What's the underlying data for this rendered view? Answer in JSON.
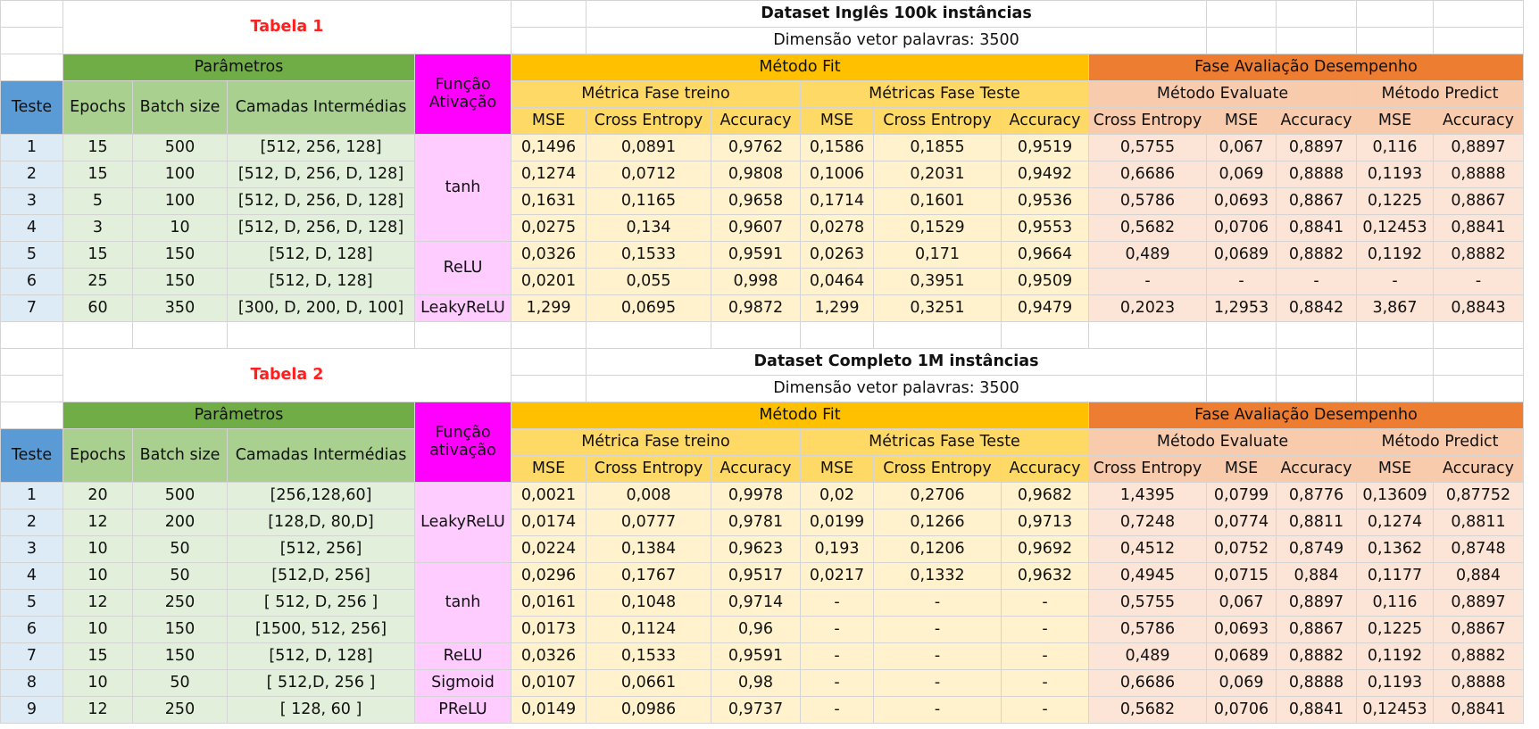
{
  "headers": {
    "teste": "Teste",
    "parametros": "Parâmetros",
    "epochs": "Epochs",
    "batch_size": "Batch size",
    "camadas": "Camadas Intermédias",
    "funcao_line1": "Função",
    "metodo_fit": "Método Fit",
    "metrica_treino": "Métrica Fase treino",
    "metricas_teste": "Métricas Fase Teste",
    "fase_avaliacao": "Fase Avaliação Desempenho",
    "metodo_evaluate": "Método Evaluate",
    "metodo_predict": "Método Predict",
    "mse": "MSE",
    "cross_entropy": "Cross Entropy",
    "accuracy": "Accuracy"
  },
  "tables": [
    {
      "title": "Tabela 1",
      "dataset": "Dataset Inglês 100k instâncias",
      "dimension": "Dimensão vetor palavras: 3500",
      "funcao_line2": "Ativação",
      "rows": [
        [
          "1",
          "15",
          "500",
          "[512, 256, 128]",
          "0,1496",
          "0,0891",
          "0,9762",
          "0,1586",
          "0,1855",
          "0,9519",
          "0,5755",
          "0,067",
          "0,8897",
          "0,116",
          "0,8897"
        ],
        [
          "2",
          "15",
          "100",
          "[512, D, 256, D, 128]",
          "0,1274",
          "0,0712",
          "0,9808",
          "0,1006",
          "0,2031",
          "0,9492",
          "0,6686",
          "0,069",
          "0,8888",
          "0,1193",
          "0,8888"
        ],
        [
          "3",
          "5",
          "100",
          "[512, D, 256, D, 128]",
          "0,1631",
          "0,1165",
          "0,9658",
          "0,1714",
          "0,1601",
          "0,9536",
          "0,5786",
          "0,0693",
          "0,8867",
          "0,1225",
          "0,8867"
        ],
        [
          "4",
          "3",
          "10",
          "[512, D, 256, D, 128]",
          "0,0275",
          "0,134",
          "0,9607",
          "0,0278",
          "0,1529",
          "0,9553",
          "0,5682",
          "0,0706",
          "0,8841",
          "0,12453",
          "0,8841"
        ],
        [
          "5",
          "15",
          "150",
          "[512,  D, 128]",
          "0,0326",
          "0,1533",
          "0,9591",
          "0,0263",
          "0,171",
          "0,9664",
          "0,489",
          "0,0689",
          "0,8882",
          "0,1192",
          "0,8882"
        ],
        [
          "6",
          "25",
          "150",
          "[512,  D, 128]",
          "0,0201",
          "0,055",
          "0,998",
          "0,0464",
          "0,3951",
          "0,9509",
          "-",
          "-",
          "-",
          "-",
          "-"
        ],
        [
          "7",
          "60",
          "350",
          "[300,  D, 200, D, 100]",
          "1,299",
          "0,0695",
          "0,9872",
          "1,299",
          "0,3251",
          "0,9479",
          "0,2023",
          "1,2953",
          "0,8842",
          "3,867",
          "0,8843"
        ]
      ],
      "func_groups": [
        {
          "label": "tanh",
          "span": 4
        },
        {
          "label": "ReLU",
          "span": 2
        },
        {
          "label": "LeakyReLU",
          "span": 1
        }
      ]
    },
    {
      "title": "Tabela 2",
      "dataset": "Dataset Completo  1M instâncias",
      "dimension": "Dimensão vetor palavras: 3500",
      "funcao_line2": "ativação",
      "rows": [
        [
          "1",
          "20",
          "500",
          "[256,128,60]",
          "0,0021",
          "0,008",
          "0,9978",
          "0,02",
          "0,2706",
          "0,9682",
          "1,4395",
          "0,0799",
          "0,8776",
          "0,13609",
          "0,87752"
        ],
        [
          "2",
          "12",
          "200",
          "[128,D, 80,D]",
          "0,0174",
          "0,0777",
          "0,9781",
          "0,0199",
          "0,1266",
          "0,9713",
          "0,7248",
          "0,0774",
          "0,8811",
          "0,1274",
          "0,8811"
        ],
        [
          "3",
          "10",
          "50",
          "[512, 256]",
          "0,0224",
          "0,1384",
          "0,9623",
          "0,193",
          "0,1206",
          "0,9692",
          "0,4512",
          "0,0752",
          "0,8749",
          "0,1362",
          "0,8748"
        ],
        [
          "4",
          "10",
          "50",
          "[512,D, 256]",
          "0,0296",
          "0,1767",
          "0,9517",
          "0,0217",
          "0,1332",
          "0,9632",
          "0,4945",
          "0,0715",
          "0,884",
          "0,1177",
          "0,884"
        ],
        [
          "5",
          "12",
          "250",
          "[ 512, D, 256 ]",
          "0,0161",
          "0,1048",
          "0,9714",
          "-",
          "-",
          "-",
          "0,5755",
          "0,067",
          "0,8897",
          "0,116",
          "0,8897"
        ],
        [
          "6",
          "10",
          "150",
          "[1500, 512, 256]",
          "0,0173",
          "0,1124",
          "0,96",
          "-",
          "-",
          "-",
          "0,5786",
          "0,0693",
          "0,8867",
          "0,1225",
          "0,8867"
        ],
        [
          "7",
          "15",
          "150",
          "[512,  D, 128]",
          "0,0326",
          "0,1533",
          "0,9591",
          "-",
          "-",
          "-",
          "0,489",
          "0,0689",
          "0,8882",
          "0,1192",
          "0,8882"
        ],
        [
          "8",
          "10",
          "50",
          "[ 512,D, 256 ]",
          "0,0107",
          "0,0661",
          "0,98",
          "-",
          "-",
          "-",
          "0,6686",
          "0,069",
          "0,8888",
          "0,1193",
          "0,8888"
        ],
        [
          "9",
          "12",
          "250",
          "[ 128, 60 ]",
          "0,0149",
          "0,0986",
          "0,9737",
          "-",
          "-",
          "-",
          "0,5682",
          "0,0706",
          "0,8841",
          "0,12453",
          "0,8841"
        ]
      ],
      "func_groups": [
        {
          "label": "LeakyReLU",
          "span": 3
        },
        {
          "label": "tanh",
          "span": 3
        },
        {
          "label": "ReLU",
          "span": 1
        },
        {
          "label": "Sigmoid",
          "span": 1
        },
        {
          "label": "PReLU",
          "span": 1
        }
      ]
    }
  ]
}
